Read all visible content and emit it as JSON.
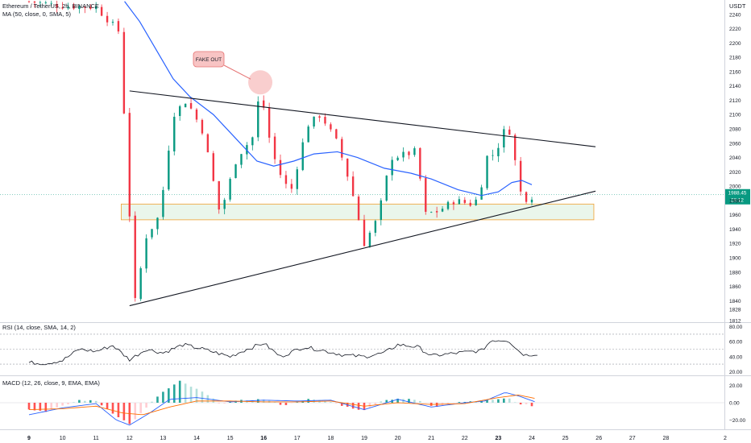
{
  "header": {
    "symbol": "Ethereum / TetherUS, 2h, BINANCE",
    "ma": "MA (50, close, 0, SMA, 5)",
    "rsi": "RSI (14, close, SMA, 14, 2)",
    "macd": "MACD (12, 26, close, 9, EMA, EMA)",
    "currency": "USDT"
  },
  "annotation": {
    "text": "FAKE OUT"
  },
  "price_tag": {
    "value": "1988.45",
    "countdown": "28:12",
    "color": "#089981"
  },
  "colors": {
    "up": "#089981",
    "down": "#f23645",
    "ma": "#2962ff",
    "zone_fill": "#e8f5e9",
    "zone_border": "#f0a030",
    "macd_line": "#2962ff",
    "signal_line": "#ff6d00",
    "rsi_line": "#131722",
    "fakeout": "#f4a6a6"
  },
  "chart_data": [
    {
      "type": "candlestick",
      "title": "Ethereum / TetherUS, 2h, BINANCE",
      "ylim": [
        1810,
        2260
      ],
      "y_ticks": [
        2240,
        2220,
        2200,
        2180,
        2160,
        2140,
        2120,
        2100,
        2080,
        2060,
        2040,
        2020,
        2000,
        1980,
        1960,
        1940,
        1920,
        1900,
        1880,
        1860,
        1840,
        1828,
        1812
      ],
      "x_ticks": [
        "9",
        "10",
        "11",
        "12",
        "13",
        "14",
        "15",
        "16",
        "17",
        "18",
        "19",
        "20",
        "21",
        "22",
        "23",
        "24",
        "25",
        "26",
        "27",
        "28",
        "2"
      ],
      "x_ticks_bold": [
        "9",
        "16",
        "23"
      ],
      "ohlc_waypoints": [
        {
          "day": 9.0,
          "price": 2258
        },
        {
          "day": 10.0,
          "price": 2252
        },
        {
          "day": 11.0,
          "price": 2250
        },
        {
          "day": 11.7,
          "price": 2215
        },
        {
          "day": 11.85,
          "price": 2090
        },
        {
          "day": 12.0,
          "price": 1960
        },
        {
          "day": 12.15,
          "price": 1835
        },
        {
          "day": 12.5,
          "price": 1930
        },
        {
          "day": 12.9,
          "price": 1960
        },
        {
          "day": 13.3,
          "price": 2100
        },
        {
          "day": 13.7,
          "price": 2120
        },
        {
          "day": 14.2,
          "price": 2075
        },
        {
          "day": 14.7,
          "price": 1960
        },
        {
          "day": 15.2,
          "price": 2040
        },
        {
          "day": 15.7,
          "price": 2070
        },
        {
          "day": 15.9,
          "price": 2140
        },
        {
          "day": 16.1,
          "price": 2080
        },
        {
          "day": 16.4,
          "price": 2025
        },
        {
          "day": 16.8,
          "price": 1990
        },
        {
          "day": 17.3,
          "price": 2085
        },
        {
          "day": 17.7,
          "price": 2100
        },
        {
          "day": 18.2,
          "price": 2060
        },
        {
          "day": 18.6,
          "price": 2000
        },
        {
          "day": 19.0,
          "price": 1920
        },
        {
          "day": 19.4,
          "price": 1955
        },
        {
          "day": 19.8,
          "price": 2040
        },
        {
          "day": 20.3,
          "price": 2045
        },
        {
          "day": 20.6,
          "price": 2050
        },
        {
          "day": 20.75,
          "price": 1960
        },
        {
          "day": 21.2,
          "price": 1965
        },
        {
          "day": 21.7,
          "price": 1980
        },
        {
          "day": 22.2,
          "price": 1975
        },
        {
          "day": 22.45,
          "price": 1985
        },
        {
          "day": 22.6,
          "price": 2040
        },
        {
          "day": 22.9,
          "price": 2045
        },
        {
          "day": 23.2,
          "price": 2080
        },
        {
          "day": 23.4,
          "price": 2075
        },
        {
          "day": 23.6,
          "price": 1995
        },
        {
          "day": 23.85,
          "price": 1982
        },
        {
          "day": 24.1,
          "price": 1988
        }
      ],
      "ma_waypoints": [
        {
          "day": 11.85,
          "price": 2258
        },
        {
          "day": 12.3,
          "price": 2230
        },
        {
          "day": 12.8,
          "price": 2190
        },
        {
          "day": 13.3,
          "price": 2150
        },
        {
          "day": 13.8,
          "price": 2125
        },
        {
          "day": 14.5,
          "price": 2100
        },
        {
          "day": 15.2,
          "price": 2065
        },
        {
          "day": 15.8,
          "price": 2035
        },
        {
          "day": 16.3,
          "price": 2028
        },
        {
          "day": 16.9,
          "price": 2035
        },
        {
          "day": 17.5,
          "price": 2045
        },
        {
          "day": 18.2,
          "price": 2048
        },
        {
          "day": 18.8,
          "price": 2040
        },
        {
          "day": 19.6,
          "price": 2025
        },
        {
          "day": 20.4,
          "price": 2018
        },
        {
          "day": 21.0,
          "price": 2010
        },
        {
          "day": 21.8,
          "price": 1995
        },
        {
          "day": 22.5,
          "price": 1987
        },
        {
          "day": 23.0,
          "price": 1992
        },
        {
          "day": 23.4,
          "price": 2005
        },
        {
          "day": 23.7,
          "price": 2008
        },
        {
          "day": 24.0,
          "price": 2002
        }
      ],
      "trendline_upper": [
        {
          "day": 12.0,
          "price": 2133
        },
        {
          "day": 25.9,
          "price": 2055
        }
      ],
      "trendline_lower": [
        {
          "day": 12.0,
          "price": 1833
        },
        {
          "day": 25.9,
          "price": 1993
        }
      ],
      "support_zone": {
        "day_from": 11.75,
        "day_to": 25.85,
        "price_from": 1953,
        "price_to": 1975
      },
      "fakeout_circle": {
        "day": 15.9,
        "price": 2145
      }
    },
    {
      "type": "line",
      "title": "RSI (14, close, SMA, 14, 2)",
      "ylim": [
        15,
        85
      ],
      "y_ticks": [
        80.0,
        60.0,
        40.0,
        20.0
      ],
      "guide_levels": [
        70,
        50,
        30
      ],
      "waypoints": [
        {
          "day": 9.0,
          "value": 32
        },
        {
          "day": 9.5,
          "value": 31
        },
        {
          "day": 10.0,
          "value": 35
        },
        {
          "day": 10.5,
          "value": 50
        },
        {
          "day": 11.0,
          "value": 47
        },
        {
          "day": 11.5,
          "value": 55
        },
        {
          "day": 12.0,
          "value": 36
        },
        {
          "day": 12.5,
          "value": 50
        },
        {
          "day": 13.0,
          "value": 45
        },
        {
          "day": 13.6,
          "value": 56
        },
        {
          "day": 14.2,
          "value": 50
        },
        {
          "day": 15.0,
          "value": 40
        },
        {
          "day": 15.5,
          "value": 50
        },
        {
          "day": 16.0,
          "value": 58
        },
        {
          "day": 16.5,
          "value": 40
        },
        {
          "day": 17.2,
          "value": 53
        },
        {
          "day": 17.8,
          "value": 48
        },
        {
          "day": 18.4,
          "value": 42
        },
        {
          "day": 19.0,
          "value": 40
        },
        {
          "day": 19.6,
          "value": 45
        },
        {
          "day": 20.0,
          "value": 56
        },
        {
          "day": 20.6,
          "value": 53
        },
        {
          "day": 21.0,
          "value": 41
        },
        {
          "day": 21.8,
          "value": 45
        },
        {
          "day": 22.5,
          "value": 48
        },
        {
          "day": 22.8,
          "value": 62
        },
        {
          "day": 23.3,
          "value": 62
        },
        {
          "day": 23.6,
          "value": 48
        },
        {
          "day": 23.8,
          "value": 42
        },
        {
          "day": 24.2,
          "value": 44
        }
      ]
    },
    {
      "type": "bar",
      "title": "MACD (12, 26, close, 9, EMA, EMA)",
      "ylim": [
        -30,
        30
      ],
      "y_ticks": [
        20.0,
        0.0,
        -20.0
      ],
      "histogram_waypoints": [
        {
          "day": 9.0,
          "value": -8
        },
        {
          "day": 9.5,
          "value": -10
        },
        {
          "day": 10.0,
          "value": -4
        },
        {
          "day": 10.5,
          "value": 3
        },
        {
          "day": 11.0,
          "value": 2
        },
        {
          "day": 11.5,
          "value": -12
        },
        {
          "day": 12.0,
          "value": -25
        },
        {
          "day": 12.4,
          "value": -10
        },
        {
          "day": 12.9,
          "value": 10
        },
        {
          "day": 13.5,
          "value": 25
        },
        {
          "day": 14.2,
          "value": 12
        },
        {
          "day": 14.7,
          "value": -1
        },
        {
          "day": 15.4,
          "value": 3
        },
        {
          "day": 16.0,
          "value": 4
        },
        {
          "day": 16.6,
          "value": -3
        },
        {
          "day": 17.3,
          "value": 4
        },
        {
          "day": 17.9,
          "value": 2
        },
        {
          "day": 18.5,
          "value": -5
        },
        {
          "day": 19.0,
          "value": -9
        },
        {
          "day": 19.5,
          "value": 2
        },
        {
          "day": 20.0,
          "value": 5
        },
        {
          "day": 20.6,
          "value": 3
        },
        {
          "day": 21.1,
          "value": -5
        },
        {
          "day": 21.8,
          "value": 1
        },
        {
          "day": 22.5,
          "value": 2
        },
        {
          "day": 22.9,
          "value": 4
        },
        {
          "day": 23.3,
          "value": 5
        },
        {
          "day": 23.6,
          "value": -1
        },
        {
          "day": 24.1,
          "value": -4
        }
      ],
      "macd_waypoints": [
        {
          "day": 9.0,
          "value": -14
        },
        {
          "day": 10.0,
          "value": -6
        },
        {
          "day": 11.0,
          "value": -1
        },
        {
          "day": 11.6,
          "value": -20
        },
        {
          "day": 12.0,
          "value": -26
        },
        {
          "day": 12.6,
          "value": -12
        },
        {
          "day": 13.2,
          "value": 4
        },
        {
          "day": 14.0,
          "value": 6
        },
        {
          "day": 15.0,
          "value": 1
        },
        {
          "day": 16.0,
          "value": 3
        },
        {
          "day": 17.0,
          "value": 2
        },
        {
          "day": 18.0,
          "value": 3
        },
        {
          "day": 19.0,
          "value": -8
        },
        {
          "day": 20.0,
          "value": 4
        },
        {
          "day": 21.0,
          "value": -5
        },
        {
          "day": 22.0,
          "value": 0
        },
        {
          "day": 22.6,
          "value": 2
        },
        {
          "day": 23.2,
          "value": 12
        },
        {
          "day": 23.6,
          "value": 8
        },
        {
          "day": 24.1,
          "value": 1
        }
      ],
      "signal_waypoints": [
        {
          "day": 9.0,
          "value": -8
        },
        {
          "day": 10.0,
          "value": -7
        },
        {
          "day": 11.0,
          "value": -4
        },
        {
          "day": 11.8,
          "value": -12
        },
        {
          "day": 12.4,
          "value": -14
        },
        {
          "day": 13.2,
          "value": -5
        },
        {
          "day": 14.0,
          "value": 2
        },
        {
          "day": 15.0,
          "value": 2
        },
        {
          "day": 16.0,
          "value": 1
        },
        {
          "day": 17.0,
          "value": 1
        },
        {
          "day": 18.0,
          "value": 2
        },
        {
          "day": 19.0,
          "value": -4
        },
        {
          "day": 20.0,
          "value": 0
        },
        {
          "day": 21.0,
          "value": -2
        },
        {
          "day": 22.0,
          "value": -1
        },
        {
          "day": 23.0,
          "value": 6
        },
        {
          "day": 23.6,
          "value": 9
        },
        {
          "day": 24.1,
          "value": 5
        }
      ]
    }
  ]
}
